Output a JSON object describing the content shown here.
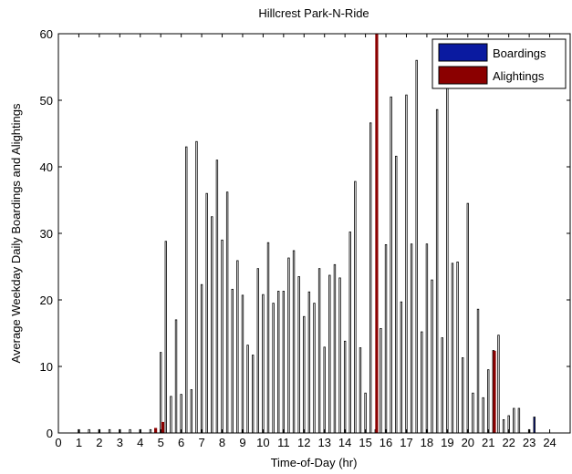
{
  "chart_data": {
    "type": "bar",
    "title": "Hillcrest Park-N-Ride",
    "xlabel": "Time-of-Day (hr)",
    "ylabel": "Average Weekday Daily Boardings and Alightings",
    "xlim": [
      0,
      25
    ],
    "ylim": [
      0,
      60
    ],
    "xticks": [
      "0",
      "1",
      "2",
      "3",
      "4",
      "5",
      "6",
      "7",
      "8",
      "9",
      "10",
      "11",
      "12",
      "13",
      "14",
      "15",
      "16",
      "17",
      "18",
      "19",
      "20",
      "21",
      "22",
      "23",
      "24"
    ],
    "yticks": [
      "0",
      "10",
      "20",
      "30",
      "40",
      "50",
      "60"
    ],
    "grid": false,
    "legend_position": "top-right",
    "bin_width_hr": 0.25,
    "series": [
      {
        "name": "Boardings",
        "color": "#0a1aa0",
        "points": [
          [
            1.0,
            0.5
          ],
          [
            1.5,
            0.5
          ],
          [
            2.0,
            0.5
          ],
          [
            2.5,
            0.5
          ],
          [
            3.0,
            0.5
          ],
          [
            3.5,
            0.5
          ],
          [
            4.0,
            0.5
          ],
          [
            4.5,
            0.5
          ],
          [
            5.0,
            12.1
          ],
          [
            5.25,
            28.8
          ],
          [
            5.5,
            5.5
          ],
          [
            5.75,
            17.0
          ],
          [
            6.0,
            5.8
          ],
          [
            6.25,
            43.0
          ],
          [
            6.5,
            6.5
          ],
          [
            6.75,
            43.8
          ],
          [
            7.0,
            22.3
          ],
          [
            7.25,
            36.0
          ],
          [
            7.5,
            32.5
          ],
          [
            7.75,
            41.0
          ],
          [
            8.0,
            29.0
          ],
          [
            8.25,
            36.2
          ],
          [
            8.5,
            21.6
          ],
          [
            8.75,
            25.9
          ],
          [
            9.0,
            20.7
          ],
          [
            9.25,
            13.2
          ],
          [
            9.5,
            11.7
          ],
          [
            9.75,
            24.7
          ],
          [
            10.0,
            20.8
          ],
          [
            10.25,
            28.6
          ],
          [
            10.5,
            19.5
          ],
          [
            10.75,
            21.3
          ],
          [
            11.0,
            21.3
          ],
          [
            11.25,
            26.3
          ],
          [
            11.5,
            27.4
          ],
          [
            11.75,
            23.5
          ],
          [
            12.0,
            17.5
          ],
          [
            12.25,
            21.2
          ],
          [
            12.5,
            19.5
          ],
          [
            12.75,
            24.7
          ],
          [
            13.0,
            12.9
          ],
          [
            13.25,
            23.7
          ],
          [
            13.5,
            25.3
          ],
          [
            13.75,
            23.3
          ],
          [
            14.0,
            13.8
          ],
          [
            14.25,
            30.2
          ],
          [
            14.5,
            37.8
          ],
          [
            14.75,
            12.8
          ],
          [
            15.0,
            6.0
          ],
          [
            15.25,
            46.6
          ],
          [
            15.5,
            0.5
          ],
          [
            15.75,
            15.7
          ],
          [
            16.0,
            28.3
          ],
          [
            16.25,
            50.5
          ],
          [
            16.5,
            41.6
          ],
          [
            16.75,
            19.7
          ],
          [
            17.0,
            50.8
          ],
          [
            17.25,
            28.4
          ],
          [
            17.5,
            56.0
          ],
          [
            17.75,
            15.2
          ],
          [
            18.0,
            28.4
          ],
          [
            18.25,
            23.0
          ],
          [
            18.5,
            48.6
          ],
          [
            18.75,
            14.3
          ],
          [
            19.0,
            52.0
          ],
          [
            19.25,
            25.5
          ],
          [
            19.5,
            25.7
          ],
          [
            19.75,
            11.3
          ],
          [
            20.0,
            34.5
          ],
          [
            20.25,
            6.0
          ],
          [
            20.5,
            18.6
          ],
          [
            20.75,
            5.3
          ],
          [
            21.0,
            9.5
          ],
          [
            21.25,
            12.4
          ],
          [
            21.5,
            14.7
          ],
          [
            21.75,
            2.0
          ],
          [
            22.0,
            2.6
          ],
          [
            22.25,
            3.7
          ],
          [
            22.5,
            3.7
          ],
          [
            23.0,
            0.5
          ],
          [
            23.25,
            2.4
          ]
        ]
      },
      {
        "name": "Alightings",
        "color": "#8b0000",
        "points": [
          [
            4.75,
            0.7
          ],
          [
            5.1,
            1.6
          ],
          [
            15.55,
            60.0
          ],
          [
            21.3,
            12.3
          ]
        ]
      }
    ]
  }
}
